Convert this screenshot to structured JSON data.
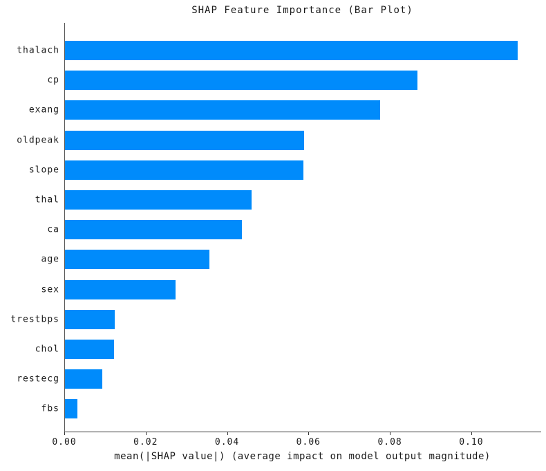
{
  "chart_data": {
    "type": "bar",
    "orientation": "horizontal",
    "title": "SHAP Feature Importance (Bar Plot)",
    "xlabel": "mean(|SHAP value|) (average impact on model output magnitude)",
    "ylabel": "",
    "categories": [
      "thalach",
      "cp",
      "exang",
      "oldpeak",
      "slope",
      "thal",
      "ca",
      "age",
      "sex",
      "trestbps",
      "chol",
      "restecg",
      "fbs"
    ],
    "values": [
      0.1112,
      0.0866,
      0.0774,
      0.0588,
      0.0585,
      0.0458,
      0.0435,
      0.0355,
      0.0271,
      0.0122,
      0.0121,
      0.0091,
      0.0031
    ],
    "xlim": [
      0,
      0.117
    ],
    "xticks": [
      0.0,
      0.02,
      0.04,
      0.06,
      0.08,
      0.1
    ],
    "xtick_labels": [
      "0.00",
      "0.02",
      "0.04",
      "0.06",
      "0.08",
      "0.10"
    ],
    "bar_color": "#008bfb",
    "grid": false,
    "legend": false,
    "background_color": "#ffffff"
  }
}
